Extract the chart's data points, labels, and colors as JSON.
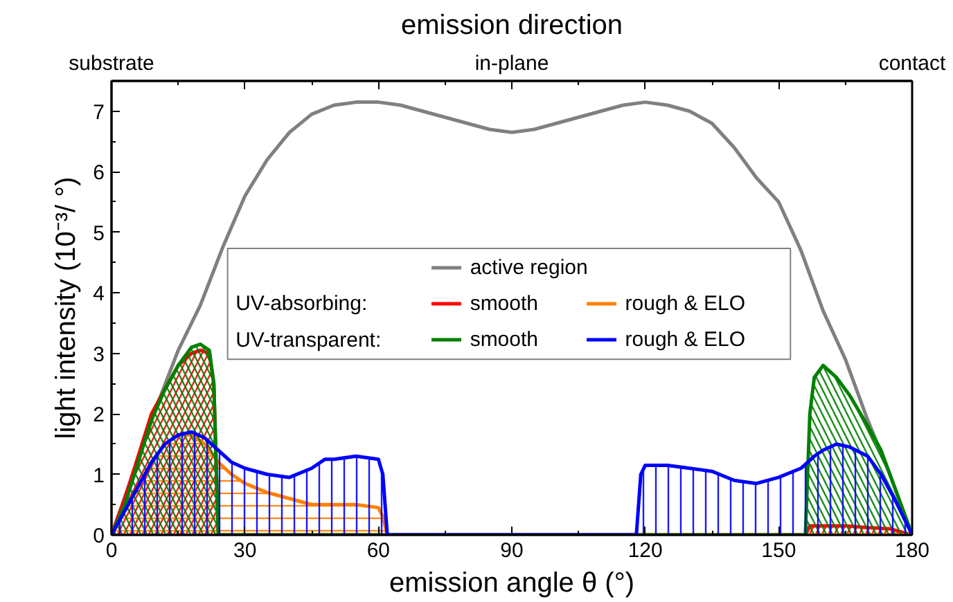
{
  "chart_data": {
    "type": "area",
    "title": "emission direction",
    "xlabel": "emission angle θ (°)",
    "ylabel": "light intensity (10⁻³/ °)",
    "xlim": [
      0,
      180
    ],
    "xticks": [
      0,
      30,
      60,
      90,
      120,
      150,
      180
    ],
    "ylim": [
      0,
      7.5
    ],
    "yticks": [
      0,
      1,
      2,
      3,
      4,
      5,
      6,
      7
    ],
    "grid": false,
    "legend": "center",
    "annotations": [
      "UV-absorbing:",
      "UV-transparent:",
      "substrate",
      "in-plane",
      "contact"
    ],
    "series": [
      {
        "name": "active region",
        "type": "line",
        "color": "#808080",
        "x": [
          0,
          10,
          15,
          20,
          25,
          30,
          35,
          40,
          45,
          50,
          55,
          60,
          65,
          70,
          75,
          80,
          85,
          90,
          95,
          100,
          105,
          110,
          115,
          120,
          125,
          130,
          135,
          140,
          145,
          150,
          155,
          160,
          165,
          170,
          175,
          180
        ],
        "values": [
          0,
          2.1,
          3.05,
          3.8,
          4.75,
          5.6,
          6.2,
          6.65,
          6.95,
          7.1,
          7.15,
          7.15,
          7.1,
          7.0,
          6.9,
          6.8,
          6.7,
          6.65,
          6.7,
          6.8,
          6.9,
          7.0,
          7.1,
          7.15,
          7.1,
          7.0,
          6.8,
          6.4,
          5.9,
          5.5,
          4.7,
          3.7,
          2.9,
          1.9,
          1.0,
          0
        ]
      },
      {
        "name": "smooth",
        "color": "#ff0000",
        "x": [
          0,
          3,
          6,
          9,
          12,
          15,
          18,
          20,
          22,
          23,
          24,
          60,
          120,
          156,
          157,
          160,
          165,
          170,
          175,
          180
        ],
        "values": [
          0,
          0.6,
          1.3,
          2.0,
          2.4,
          2.8,
          3.0,
          3.05,
          3.0,
          2.5,
          0,
          0,
          0,
          0,
          0.15,
          0.15,
          0.15,
          0.12,
          0.1,
          0
        ]
      },
      {
        "name": "rough & ELO",
        "color": "#ff8000",
        "x": [
          0,
          3,
          6,
          9,
          12,
          15,
          18,
          21,
          24,
          27,
          30,
          35,
          40,
          45,
          50,
          55,
          60,
          61,
          62,
          120,
          180
        ],
        "values": [
          0,
          0.4,
          0.8,
          1.2,
          1.5,
          1.65,
          1.65,
          1.5,
          1.2,
          1.0,
          0.85,
          0.7,
          0.6,
          0.5,
          0.5,
          0.5,
          0.45,
          0.3,
          0,
          0,
          0
        ]
      },
      {
        "name": "smooth",
        "color": "#008000",
        "x": [
          0,
          3,
          6,
          9,
          12,
          15,
          18,
          20,
          22,
          23,
          24,
          60,
          120,
          156,
          157,
          158,
          160,
          163,
          166,
          170,
          173,
          176,
          178,
          180
        ],
        "values": [
          0,
          0.5,
          1.2,
          1.9,
          2.4,
          2.8,
          3.1,
          3.15,
          3.05,
          2.5,
          0,
          0,
          0,
          0,
          2.0,
          2.6,
          2.8,
          2.6,
          2.3,
          1.8,
          1.4,
          0.8,
          0.4,
          0
        ]
      },
      {
        "name": "rough & ELO",
        "color": "#0000ff",
        "x": [
          0,
          3,
          6,
          9,
          12,
          15,
          18,
          21,
          24,
          27,
          30,
          35,
          40,
          45,
          48,
          50,
          55,
          60,
          61,
          62,
          90,
          118,
          119,
          120,
          125,
          130,
          135,
          140,
          145,
          150,
          155,
          158,
          160,
          163,
          166,
          170,
          173,
          176,
          178,
          180
        ],
        "values": [
          0,
          0.4,
          0.8,
          1.2,
          1.5,
          1.65,
          1.7,
          1.6,
          1.4,
          1.2,
          1.1,
          1.0,
          0.95,
          1.1,
          1.25,
          1.25,
          1.3,
          1.25,
          1.0,
          0,
          0,
          0,
          1.0,
          1.15,
          1.15,
          1.1,
          1.05,
          0.9,
          0.85,
          0.95,
          1.1,
          1.3,
          1.4,
          1.5,
          1.45,
          1.3,
          1.0,
          0.6,
          0.3,
          0
        ]
      }
    ]
  }
}
